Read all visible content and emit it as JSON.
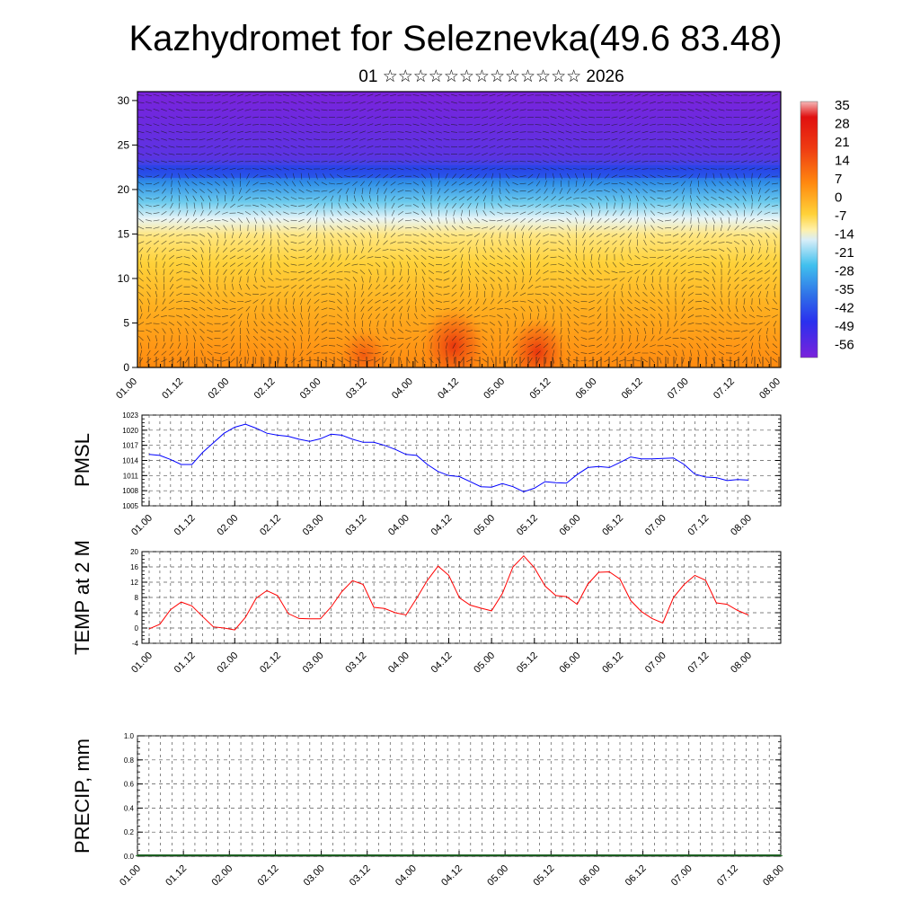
{
  "title": "Kazhydromet for Seleznevka(49.6 83.48)",
  "subtitle": "01 ☆☆☆☆☆☆☆☆☆☆☆☆☆ 2026",
  "x_labels": [
    "01.00",
    "01.12",
    "02.00",
    "02.12",
    "03.00",
    "03.12",
    "04.00",
    "04.12",
    "05.00",
    "05.12",
    "06.00",
    "06.12",
    "07.00",
    "07.12",
    "08.00"
  ],
  "chart_data": [
    {
      "type": "heatmap",
      "name": "vertical temperature cross-section with wind vectors",
      "ylim": [
        0,
        31
      ],
      "yticks": [
        "0",
        "5",
        "10",
        "15",
        "20",
        "25",
        "30"
      ],
      "colorbar_labels": [
        "35",
        "28",
        "21",
        "14",
        "7",
        "0",
        "-7",
        "-14",
        "-21",
        "-28",
        "-35",
        "-42",
        "-49",
        "-56"
      ],
      "colorbar_range": [
        -63,
        40
      ],
      "colors": {
        "cold": "#6a1fd6",
        "deep_blue": "#2d4ce8",
        "sky": "#2fb0ea",
        "pale": "#e6f4fa",
        "yellow": "#ffd94a",
        "orange": "#ff9a1c",
        "red": "#e8280e"
      }
    },
    {
      "type": "line",
      "name": "PMSL",
      "ylabel": "PMSL",
      "ylim": [
        1005,
        1023
      ],
      "yticks": [
        "1005",
        "1008",
        "1011",
        "1014",
        "1017",
        "1020",
        "1023"
      ],
      "color": "#0000ff",
      "values": [
        1015.2,
        1015.0,
        1014.2,
        1013.2,
        1013.2,
        1015.6,
        1017.5,
        1019.4,
        1020.6,
        1021.2,
        1020.4,
        1019.4,
        1019.0,
        1018.8,
        1018.2,
        1017.8,
        1018.3,
        1019.2,
        1019.0,
        1018.2,
        1017.6,
        1017.6,
        1017.0,
        1016.2,
        1015.2,
        1015.0,
        1013.2,
        1011.8,
        1011.0,
        1010.8,
        1009.8,
        1008.8,
        1008.7,
        1009.4,
        1008.8,
        1007.8,
        1008.5,
        1009.8,
        1009.6,
        1009.5,
        1011.2,
        1012.6,
        1012.8,
        1012.6,
        1013.6,
        1014.7,
        1014.3,
        1014.3,
        1014.4,
        1014.5,
        1013.2,
        1011.3,
        1010.7,
        1010.6,
        1010.0,
        1010.2,
        1010.1
      ]
    },
    {
      "type": "line",
      "name": "TEMP at 2 M",
      "ylabel": "TEMP at 2 M",
      "ylim": [
        -4,
        20
      ],
      "yticks": [
        "-4",
        "0",
        "4",
        "8",
        "12",
        "16",
        "20"
      ],
      "color": "#ff0000",
      "values": [
        -0.2,
        1.0,
        4.8,
        6.8,
        5.8,
        3.0,
        0.3,
        0.0,
        -0.5,
        2.8,
        7.8,
        9.8,
        8.5,
        3.8,
        2.5,
        2.4,
        2.4,
        5.5,
        9.5,
        12.4,
        11.4,
        5.4,
        5.1,
        4.0,
        3.4,
        7.8,
        12.5,
        16.2,
        13.8,
        7.9,
        6.0,
        5.2,
        4.5,
        9.0,
        16.0,
        18.9,
        15.8,
        11.0,
        8.5,
        8.2,
        6.2,
        11.5,
        14.6,
        14.7,
        12.8,
        7.2,
        4.3,
        2.5,
        1.3,
        8.0,
        11.4,
        13.8,
        12.5,
        6.6,
        6.2,
        4.6,
        3.4
      ]
    },
    {
      "type": "bar",
      "name": "PRECIP, mm",
      "ylabel": "PRECIP, mm",
      "ylim": [
        0,
        1.0
      ],
      "yticks": [
        "0.0",
        "0.2",
        "0.4",
        "0.6",
        "0.8",
        "1.0"
      ],
      "values": [
        0,
        0,
        0,
        0,
        0,
        0,
        0,
        0,
        0,
        0,
        0,
        0,
        0,
        0,
        0,
        0,
        0,
        0,
        0,
        0,
        0,
        0,
        0,
        0,
        0,
        0,
        0,
        0,
        0,
        0,
        0,
        0,
        0,
        0,
        0,
        0,
        0,
        0,
        0,
        0,
        0,
        0,
        0,
        0,
        0,
        0,
        0,
        0,
        0,
        0,
        0,
        0,
        0,
        0,
        0,
        0,
        0
      ]
    }
  ]
}
